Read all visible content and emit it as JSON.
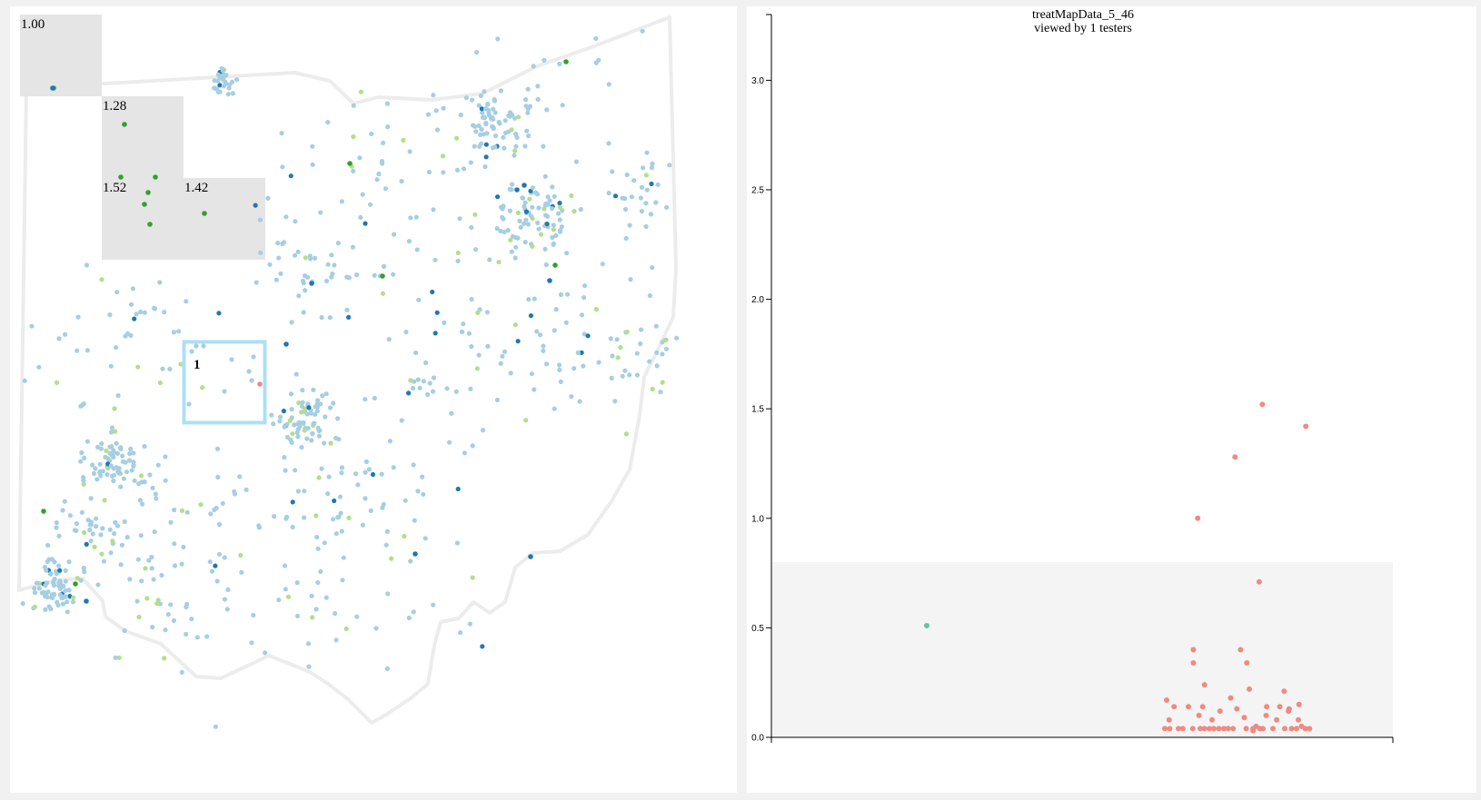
{
  "colors": {
    "light_blue": "#a6cee3",
    "dark_blue": "#1f78b4",
    "light_green": "#b2df8a",
    "dark_green": "#33a02c",
    "salmon": "#f08a80",
    "teal_point": "#66c2a5",
    "cell_fill": "#e5e5e5",
    "selection_stroke": "#abe0f5",
    "threshold_band": "#f4f4f4",
    "outline": "#ececec"
  },
  "map": {
    "cells": [
      {
        "label": "1.00"
      },
      {
        "label": "1.28"
      },
      {
        "label": "1.52"
      },
      {
        "label": "1.42"
      }
    ],
    "selection_label": "1"
  },
  "chart_data": {
    "type": "scatter",
    "title": "treatMapData_5_46",
    "subtitle": "viewed by 1 testers",
    "xlabel": "",
    "ylabel": "",
    "ylim": [
      0,
      3.3
    ],
    "y_ticks": [
      "0.0",
      "0.5",
      "1.0",
      "1.5",
      "2.0",
      "2.5",
      "3.0"
    ],
    "threshold_band": [
      0,
      0.8
    ],
    "series": [
      {
        "color": "#66c2a5",
        "points": [
          {
            "x": 0.25,
            "y": 0.51
          }
        ]
      },
      {
        "color": "#f08a80",
        "points": [
          {
            "x": 0.79,
            "y": 1.52
          },
          {
            "x": 0.86,
            "y": 1.42
          },
          {
            "x": 0.746,
            "y": 1.28
          },
          {
            "x": 0.686,
            "y": 1.0
          },
          {
            "x": 0.785,
            "y": 0.71
          },
          {
            "x": 0.679,
            "y": 0.4
          },
          {
            "x": 0.755,
            "y": 0.4
          },
          {
            "x": 0.765,
            "y": 0.34
          },
          {
            "x": 0.679,
            "y": 0.34
          },
          {
            "x": 0.697,
            "y": 0.24
          },
          {
            "x": 0.769,
            "y": 0.22
          },
          {
            "x": 0.825,
            "y": 0.21
          },
          {
            "x": 0.636,
            "y": 0.17
          },
          {
            "x": 0.739,
            "y": 0.18
          },
          {
            "x": 0.849,
            "y": 0.15
          },
          {
            "x": 0.648,
            "y": 0.14
          },
          {
            "x": 0.671,
            "y": 0.14
          },
          {
            "x": 0.694,
            "y": 0.14
          },
          {
            "x": 0.797,
            "y": 0.14
          },
          {
            "x": 0.818,
            "y": 0.14
          },
          {
            "x": 0.833,
            "y": 0.13
          },
          {
            "x": 0.749,
            "y": 0.13
          },
          {
            "x": 0.688,
            "y": 0.1
          },
          {
            "x": 0.722,
            "y": 0.12
          },
          {
            "x": 0.832,
            "y": 0.12
          },
          {
            "x": 0.796,
            "y": 0.1
          },
          {
            "x": 0.64,
            "y": 0.08
          },
          {
            "x": 0.709,
            "y": 0.08
          },
          {
            "x": 0.761,
            "y": 0.09
          },
          {
            "x": 0.813,
            "y": 0.08
          },
          {
            "x": 0.848,
            "y": 0.08
          },
          {
            "x": 0.633,
            "y": 0.04
          },
          {
            "x": 0.641,
            "y": 0.04
          },
          {
            "x": 0.655,
            "y": 0.04
          },
          {
            "x": 0.662,
            "y": 0.04
          },
          {
            "x": 0.678,
            "y": 0.04
          },
          {
            "x": 0.69,
            "y": 0.04
          },
          {
            "x": 0.697,
            "y": 0.04
          },
          {
            "x": 0.705,
            "y": 0.04
          },
          {
            "x": 0.712,
            "y": 0.04
          },
          {
            "x": 0.72,
            "y": 0.04
          },
          {
            "x": 0.728,
            "y": 0.04
          },
          {
            "x": 0.735,
            "y": 0.04
          },
          {
            "x": 0.743,
            "y": 0.04
          },
          {
            "x": 0.764,
            "y": 0.04
          },
          {
            "x": 0.775,
            "y": 0.04
          },
          {
            "x": 0.78,
            "y": 0.05
          },
          {
            "x": 0.786,
            "y": 0.04
          },
          {
            "x": 0.807,
            "y": 0.04
          },
          {
            "x": 0.826,
            "y": 0.04
          },
          {
            "x": 0.837,
            "y": 0.04
          },
          {
            "x": 0.845,
            "y": 0.04
          },
          {
            "x": 0.853,
            "y": 0.05
          },
          {
            "x": 0.859,
            "y": 0.04
          },
          {
            "x": 0.866,
            "y": 0.04
          },
          {
            "x": 0.791,
            "y": 0.04
          },
          {
            "x": 0.775,
            "y": 0.03
          }
        ]
      }
    ]
  }
}
